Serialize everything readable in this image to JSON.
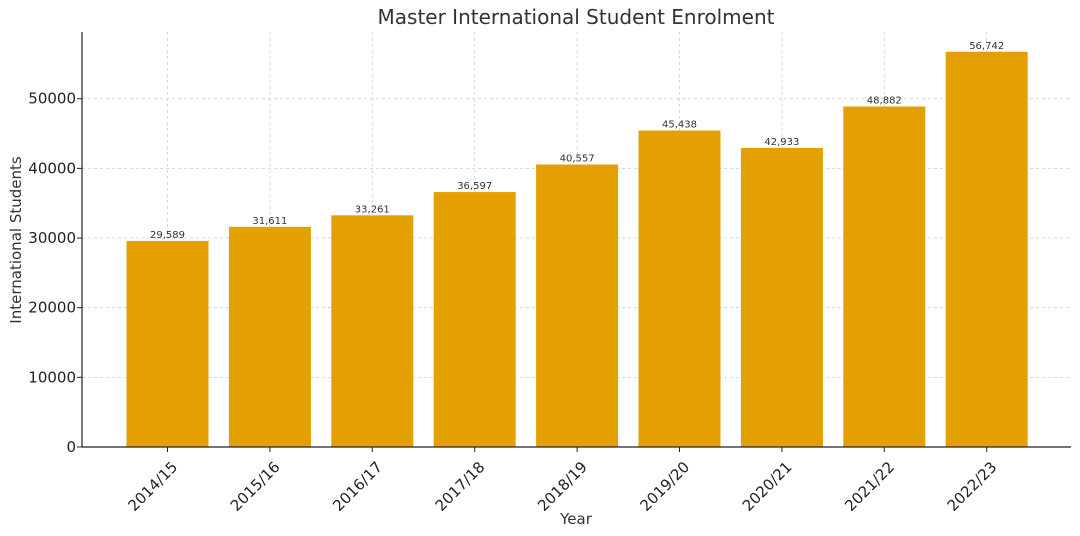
{
  "chart_data": {
    "type": "bar",
    "title": "Master International Student Enrolment",
    "xlabel": "Year",
    "ylabel": "International Students",
    "categories": [
      "2014/15",
      "2015/16",
      "2016/17",
      "2017/18",
      "2018/19",
      "2019/20",
      "2020/21",
      "2021/22",
      "2022/23"
    ],
    "values": [
      29589,
      31611,
      33261,
      36597,
      40557,
      45438,
      42933,
      48882,
      56742
    ],
    "value_labels": [
      "29,589",
      "31,611",
      "33,261",
      "36,597",
      "40,557",
      "45,438",
      "42,933",
      "48,882",
      "56,742"
    ],
    "yticks": [
      0,
      10000,
      20000,
      30000,
      40000,
      50000
    ],
    "ytick_labels": [
      "0",
      "10000",
      "20000",
      "30000",
      "40000",
      "50000"
    ],
    "ylim": [
      0,
      59579
    ],
    "grid": true,
    "bar_color": "#E3A000"
  }
}
